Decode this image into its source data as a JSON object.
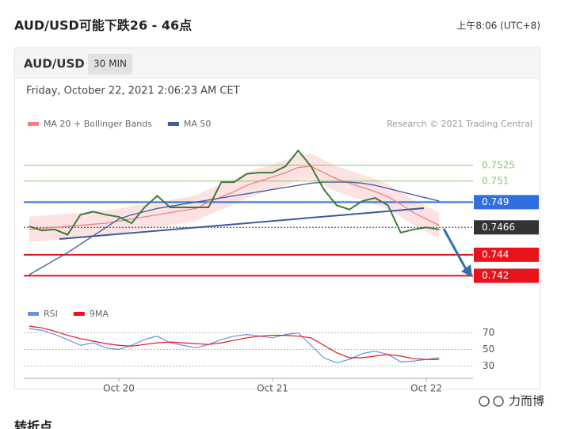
{
  "header": {
    "title": "AUD/USD可能下跌26 - 46点",
    "time": "上午8:06 (UTC+8)"
  },
  "chart_data": {
    "type": "line",
    "symbol": "AUD/USD",
    "interval": "30 MIN",
    "subtitle": "Friday, October 22, 2021 2:06:23 AM CET",
    "credit": "Research © 2021 Trading Central",
    "categories": [
      null,
      null,
      null,
      null,
      null,
      null,
      null,
      "Oct 20",
      null,
      null,
      null,
      null,
      null,
      null,
      null,
      null,
      null,
      null,
      null,
      "Oct 21",
      null,
      null,
      null,
      null,
      null,
      null,
      null,
      null,
      null,
      null,
      null,
      "Oct 22",
      null
    ],
    "values": [
      0.7467,
      0.7463,
      0.7464,
      0.7459,
      0.7478,
      0.7481,
      0.7478,
      0.7476,
      0.747,
      0.7485,
      0.7496,
      0.7485,
      0.7485,
      0.7485,
      0.7485,
      0.7509,
      0.7509,
      0.7517,
      0.7518,
      0.7518,
      0.7524,
      0.7539,
      0.7524,
      0.7502,
      0.7487,
      0.7483,
      0.7491,
      0.7494,
      0.7487,
      0.7461,
      0.7464,
      0.7466,
      0.7464
    ],
    "color": "#3a7d3a",
    "series": [
      {
        "name": "MA 20 + Bollinger Bands",
        "color": "#f08080",
        "values": [
          0.7464,
          0.7465,
          0.7466,
          0.7467,
          0.7468,
          0.7469,
          0.747,
          0.7472,
          0.7474,
          0.7476,
          0.7478,
          0.748,
          0.7482,
          0.7484,
          0.749,
          0.7495,
          0.75,
          0.7506,
          0.751,
          0.7514,
          0.7518,
          0.7523,
          0.7524,
          0.7518,
          0.7512,
          0.7508,
          0.7504,
          0.75,
          0.7495,
          0.7488,
          0.748,
          0.7474,
          0.7468
        ]
      },
      {
        "name": "MA 50",
        "color": "#3b5b9a",
        "values": [
          0.7421,
          0.7428,
          0.7435,
          0.7442,
          0.745,
          0.7458,
          0.7466,
          0.7474,
          0.7478,
          0.7481,
          0.7484,
          0.7486,
          0.7488,
          0.749,
          0.7492,
          0.7494,
          0.7496,
          0.7498,
          0.75,
          0.7502,
          0.7504,
          0.7506,
          0.7508,
          0.7509,
          0.7509,
          0.7509,
          0.7508,
          0.7506,
          0.7503,
          0.75,
          0.7497,
          0.7494,
          0.7491
        ]
      }
    ],
    "ylim": [
      0.74,
      0.7558
    ],
    "levels": [
      {
        "value": 0.7525,
        "color": "#8cc864",
        "style": "text"
      },
      {
        "value": 0.751,
        "color": "#8cc864",
        "style": "text"
      },
      {
        "value": 0.749,
        "color": "#2f6fe0",
        "style": "box"
      },
      {
        "value": 0.7466,
        "color": "#333333",
        "style": "dotted"
      },
      {
        "value": 0.744,
        "color": "#e8141c",
        "style": "box"
      },
      {
        "value": 0.742,
        "color": "#e8141c",
        "style": "box"
      }
    ],
    "rsi": {
      "ylim": [
        20,
        80
      ],
      "yticks": [
        70,
        50,
        30
      ],
      "series": [
        {
          "name": "RSI",
          "color": "#6b8ee0",
          "values": [
            75,
            73,
            68,
            62,
            55,
            58,
            52,
            50,
            55,
            62,
            66,
            58,
            55,
            52,
            56,
            62,
            66,
            68,
            66,
            64,
            68,
            70,
            55,
            40,
            34,
            38,
            45,
            48,
            44,
            35,
            36,
            38,
            40
          ]
        },
        {
          "name": "9MA",
          "color": "#e8141c",
          "values": [
            78,
            76,
            72,
            67,
            63,
            60,
            57,
            55,
            54,
            56,
            58,
            59,
            58,
            57,
            56,
            58,
            61,
            64,
            66,
            67,
            67,
            66,
            64,
            55,
            46,
            40,
            40,
            42,
            44,
            42,
            39,
            38,
            38
          ]
        }
      ]
    }
  },
  "footer": {
    "heading": "转折点",
    "watermark": "力而博"
  }
}
